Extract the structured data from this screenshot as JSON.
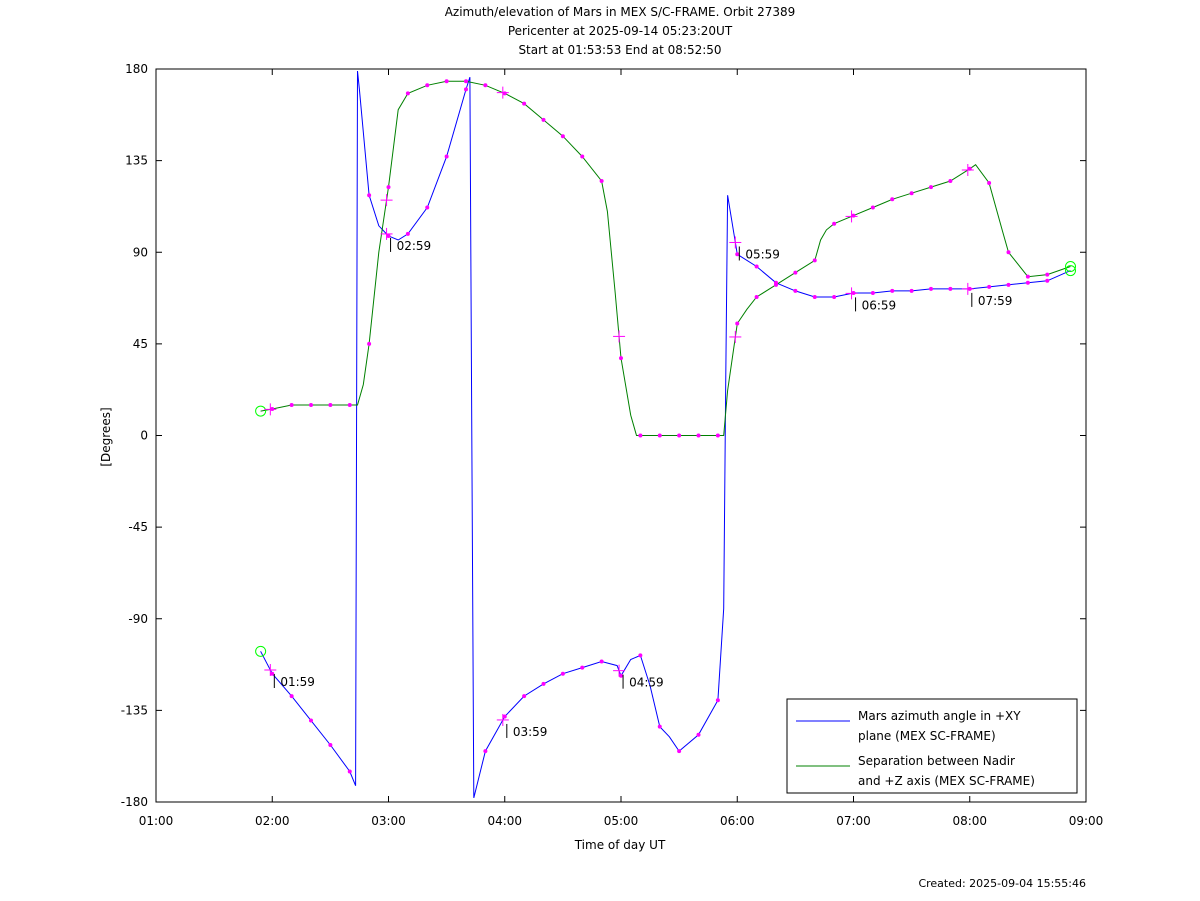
{
  "title_lines": [
    "Azimuth/elevation of Mars in MEX S/C-FRAME.  Orbit 27389",
    "Pericenter at 2025-09-14 05:23:20UT",
    "Start at 01:53:53 End at 08:52:50"
  ],
  "created": "Created: 2025-09-04 15:55:46",
  "colors": {
    "azimuth": "#0000ff",
    "separation": "#008000",
    "marker": "#ff00ff",
    "circle": "#00ff00"
  },
  "chart_data": {
    "type": "line",
    "xlabel": "Time of day UT",
    "ylabel": "[Degrees]",
    "xlim": [
      "01:00",
      "09:00"
    ],
    "ylim": [
      -180,
      180
    ],
    "x_ticks": [
      "01:00",
      "02:00",
      "03:00",
      "04:00",
      "05:00",
      "06:00",
      "07:00",
      "08:00",
      "09:00"
    ],
    "y_ticks": [
      180,
      135,
      90,
      45,
      0,
      -45,
      -90,
      -135,
      -180
    ],
    "grid": false,
    "legend_position": "bottom-right",
    "series": [
      {
        "name": "Mars azimuth angle in +XY plane (MEX SC-FRAME)",
        "legend_lines": [
          "Mars azimuth angle in +XY",
          "plane (MEX SC-FRAME)"
        ],
        "color": "#0000ff",
        "x": [
          "01:54",
          "02:00",
          "02:10",
          "02:20",
          "02:30",
          "02:40",
          "02:43",
          "02:44",
          "02:45",
          "02:50",
          "02:55",
          "03:00",
          "03:05",
          "03:10",
          "03:20",
          "03:30",
          "03:40",
          "03:42",
          "03:43",
          "03:44",
          "03:50",
          "04:00",
          "04:10",
          "04:20",
          "04:30",
          "04:40",
          "04:50",
          "04:58",
          "05:00",
          "05:05",
          "05:10",
          "05:15",
          "05:20",
          "05:25",
          "05:30",
          "05:40",
          "05:50",
          "05:53",
          "05:54",
          "05:55",
          "06:00",
          "06:10",
          "06:20",
          "06:30",
          "06:40",
          "06:50",
          "07:00",
          "07:10",
          "07:20",
          "07:30",
          "07:40",
          "07:50",
          "08:00",
          "08:10",
          "08:20",
          "08:30",
          "08:40",
          "08:52"
        ],
        "y": [
          -106,
          -117,
          -128,
          -140,
          -152,
          -165,
          -172,
          179,
          170,
          118,
          103,
          98,
          96,
          99,
          112,
          137,
          170,
          176,
          0,
          -178,
          -155,
          -138,
          -128,
          -122,
          -117,
          -114,
          -111,
          -113,
          -118,
          -110,
          -108,
          -123,
          -143,
          -148,
          -155,
          -147,
          -130,
          -85,
          20,
          118,
          89,
          83,
          75,
          71,
          68,
          68,
          70,
          70,
          71,
          71,
          72,
          72,
          72,
          73,
          74,
          75,
          76,
          81
        ]
      },
      {
        "name": "Separation between Nadir and +Z axis (MEX SC-FRAME)",
        "legend_lines": [
          "Separation between Nadir",
          "and +Z axis (MEX SC-FRAME)"
        ],
        "color": "#008000",
        "x": [
          "01:54",
          "02:00",
          "02:10",
          "02:20",
          "02:30",
          "02:40",
          "02:44",
          "02:47",
          "02:50",
          "02:55",
          "03:00",
          "03:05",
          "03:10",
          "03:20",
          "03:30",
          "03:40",
          "03:50",
          "04:00",
          "04:10",
          "04:20",
          "04:30",
          "04:40",
          "04:50",
          "04:53",
          "04:57",
          "05:00",
          "05:05",
          "05:08",
          "05:10",
          "05:20",
          "05:30",
          "05:40",
          "05:50",
          "05:53",
          "05:55",
          "06:00",
          "06:05",
          "06:10",
          "06:20",
          "06:30",
          "06:40",
          "06:43",
          "06:46",
          "06:50",
          "07:00",
          "07:10",
          "07:20",
          "07:30",
          "07:40",
          "07:50",
          "08:00",
          "08:03",
          "08:10",
          "08:17",
          "08:20",
          "08:30",
          "08:40",
          "08:52"
        ],
        "y": [
          12,
          13,
          15,
          15,
          15,
          15,
          15,
          25,
          45,
          90,
          122,
          160,
          168,
          172,
          174,
          174,
          172,
          168,
          163,
          155,
          147,
          137,
          125,
          110,
          70,
          38,
          10,
          0,
          0,
          0,
          0,
          0,
          0,
          0,
          22,
          55,
          62,
          68,
          74,
          80,
          86,
          96,
          101,
          104,
          108,
          112,
          116,
          119,
          122,
          125,
          131,
          133,
          124,
          100,
          90,
          78,
          79,
          83
        ]
      }
    ],
    "time_labels": [
      "01:59",
      "02:59",
      "03:59",
      "04:59",
      "05:59",
      "06:59",
      "07:59"
    ]
  }
}
